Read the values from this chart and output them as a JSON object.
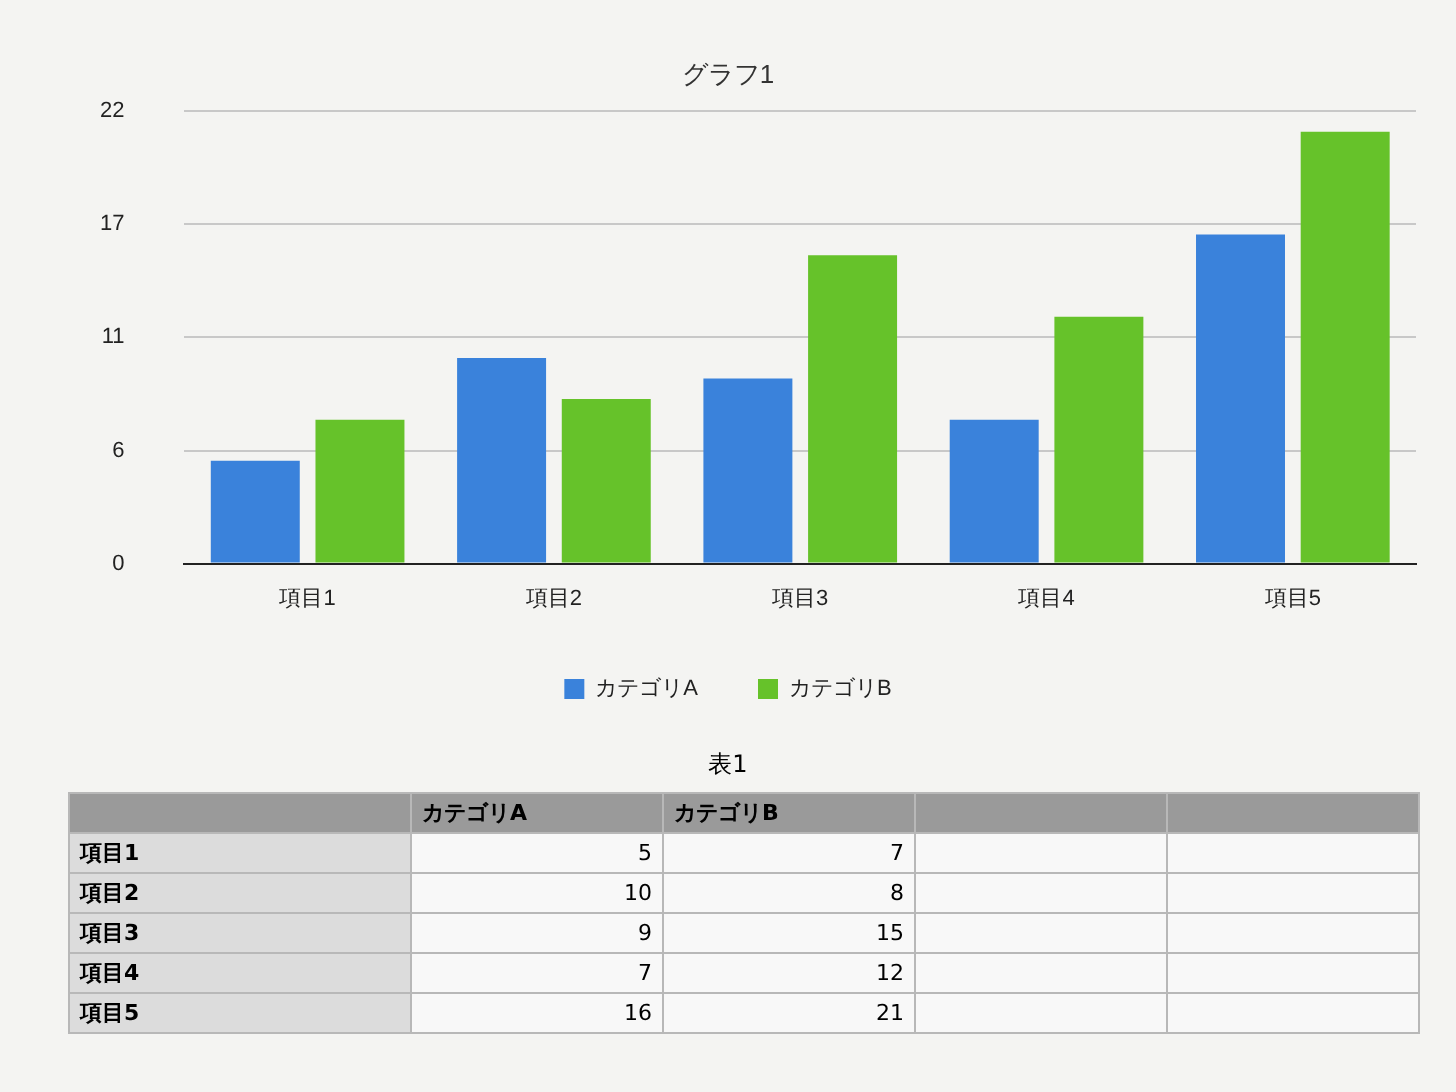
{
  "chart_data": [
    {
      "type": "bar",
      "title": "グラフ1",
      "categories": [
        "項目1",
        "項目2",
        "項目3",
        "項目4",
        "項目5"
      ],
      "series": [
        {
          "name": "カテゴリA",
          "color": "#3a82db",
          "values": [
            5,
            10,
            9,
            7,
            16
          ]
        },
        {
          "name": "カテゴリB",
          "color": "#66c22a",
          "values": [
            7,
            8,
            15,
            12,
            21
          ]
        }
      ],
      "ylim": [
        0,
        22
      ],
      "yticks": [
        0,
        {
          "value": 5.5,
          "label": "6"
        },
        11,
        {
          "value": 16.5,
          "label": "17"
        },
        22
      ],
      "grid": "y",
      "legend": "bottom"
    },
    {
      "type": "other",
      "title": "表1",
      "data_labels": true,
      "categories": [
        "項目1",
        "項目2",
        "項目3",
        "項目4",
        "項目5"
      ],
      "series": [
        {
          "name": "カテゴリA",
          "values": [
            5,
            10,
            9,
            7,
            16
          ]
        },
        {
          "name": "カテゴリB",
          "values": [
            7,
            8,
            15,
            12,
            21
          ]
        }
      ]
    }
  ]
}
